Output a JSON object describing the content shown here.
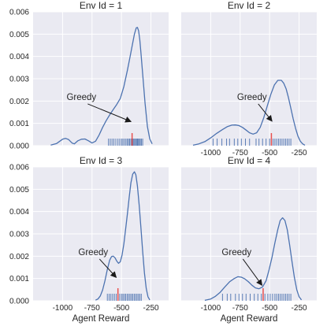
{
  "figure": {
    "style": {
      "panel_bg": "#eaeaf2",
      "grid_color": "#ffffff",
      "curve_color": "#4c72b0",
      "rug_color": "#4c72b0",
      "greedy_color": "#e8504f",
      "arrow_color": "#1a1a1a"
    }
  },
  "chart_data": [
    {
      "type": "area",
      "title": "Env Id = 1",
      "xlabel": "",
      "ylabel": "",
      "xlim": [
        -1250,
        -100
      ],
      "ylim": [
        0,
        0.006
      ],
      "xticks": [
        -1000,
        -750,
        -500,
        -250
      ],
      "yticks": [
        0.0,
        0.001,
        0.002,
        0.003,
        0.004,
        0.005,
        0.006
      ],
      "ytick_labels": [
        "0.000",
        "0.001",
        "0.002",
        "0.003",
        "0.004",
        "0.005",
        "0.006"
      ],
      "xtick_labels": [],
      "series": [
        {
          "kind": "kde",
          "x": [
            -1100,
            -1050,
            -1000,
            -975,
            -950,
            -920,
            -900,
            -870,
            -840,
            -810,
            -780,
            -750,
            -720,
            -690,
            -660,
            -630,
            -600,
            -570,
            -540,
            -510,
            -480,
            -450,
            -430,
            -410,
            -390,
            -375,
            -365,
            -355,
            -345,
            -335,
            -320,
            -300,
            -280,
            -260,
            -240
          ],
          "y": [
            3e-05,
            0.0001,
            0.00029,
            0.00033,
            0.00028,
            0.00012,
            8e-05,
            0.00022,
            0.00029,
            0.0003,
            0.00022,
            0.00012,
            0.0002,
            0.00048,
            0.00082,
            0.00112,
            0.00138,
            0.00162,
            0.00185,
            0.00212,
            0.00265,
            0.00338,
            0.0039,
            0.00445,
            0.005,
            0.00528,
            0.0053,
            0.00515,
            0.00475,
            0.00415,
            0.0032,
            0.0019,
            0.00085,
            0.0003,
            8e-05
          ]
        }
      ],
      "rug": [
        -610,
        -595,
        -580,
        -565,
        -548,
        -530,
        -515,
        -500,
        -488,
        -475,
        -462,
        -450,
        -440,
        -430,
        -420,
        -412,
        -404,
        -396,
        -388,
        -380,
        -372,
        -364,
        -356,
        -348,
        -340,
        -330,
        -320
      ],
      "greedy_value": -410,
      "annotation": {
        "text": "Greedy",
        "text_at": [
          -840,
          0.00205
        ],
        "arrow_to": [
          -420,
          0.00108
        ]
      }
    },
    {
      "type": "area",
      "title": "Env Id = 2",
      "xlabel": "",
      "ylabel": "",
      "xlim": [
        -1250,
        -100
      ],
      "ylim": [
        0,
        0.006
      ],
      "xticks": [
        -1000,
        -750,
        -500,
        -250
      ],
      "xtick_labels": [
        "-1000",
        "-750",
        "-500",
        "-250"
      ],
      "yticks": [
        0.0,
        0.001,
        0.002,
        0.003,
        0.004,
        0.005,
        0.006
      ],
      "ytick_labels": [],
      "series": [
        {
          "kind": "kde",
          "x": [
            -1150,
            -1100,
            -1050,
            -1000,
            -950,
            -900,
            -860,
            -820,
            -790,
            -760,
            -730,
            -700,
            -670,
            -640,
            -610,
            -580,
            -550,
            -520,
            -490,
            -460,
            -430,
            -400,
            -380,
            -360,
            -340,
            -320,
            -300,
            -280,
            -260,
            -240,
            -220,
            -200
          ],
          "y": [
            2e-05,
            8e-05,
            0.00018,
            0.00035,
            0.00055,
            0.00072,
            0.00085,
            0.00092,
            0.00093,
            0.0009,
            0.00082,
            0.0007,
            0.00058,
            0.00052,
            0.00058,
            0.00082,
            0.00125,
            0.00178,
            0.0023,
            0.00272,
            0.00293,
            0.00293,
            0.0028,
            0.00255,
            0.00215,
            0.00168,
            0.0012,
            0.00078,
            0.00043,
            0.0002,
            8e-05,
            2e-05
          ]
        }
      ],
      "rug": [
        -980,
        -945,
        -905,
        -865,
        -840,
        -800,
        -770,
        -740,
        -705,
        -670,
        -615,
        -590,
        -560,
        -530,
        -500,
        -485,
        -470,
        -455,
        -440,
        -425,
        -410,
        -395,
        -380,
        -365,
        -350,
        -335,
        -320
      ],
      "greedy_value": -485,
      "annotation": {
        "text": "Greedy",
        "text_at": [
          -650,
          0.00205
        ],
        "arrow_to": [
          -480,
          0.0011
        ]
      }
    },
    {
      "type": "area",
      "title": "Env Id = 3",
      "xlabel": "Agent Reward",
      "ylabel": "",
      "xlim": [
        -1250,
        -100
      ],
      "ylim": [
        0,
        0.006
      ],
      "xticks": [
        -1000,
        -750,
        -500,
        -250
      ],
      "xtick_labels": [
        "-1000",
        "-750",
        "-500",
        "-250"
      ],
      "yticks": [
        0.0,
        0.001,
        0.002,
        0.003,
        0.004,
        0.005,
        0.006
      ],
      "ytick_labels": [
        "0.000",
        "0.001",
        "0.002",
        "0.003",
        "0.004",
        "0.005",
        "0.006"
      ],
      "series": [
        {
          "kind": "kde",
          "x": [
            -720,
            -700,
            -680,
            -660,
            -640,
            -620,
            -600,
            -585,
            -570,
            -555,
            -540,
            -525,
            -510,
            -495,
            -480,
            -465,
            -450,
            -435,
            -420,
            -405,
            -390,
            -378,
            -365,
            -350,
            -335,
            -320,
            -305,
            -290,
            -275,
            -260
          ],
          "y": [
            3e-05,
            8e-05,
            0.00022,
            0.00048,
            0.0009,
            0.0014,
            0.00182,
            0.00198,
            0.002,
            0.00193,
            0.00178,
            0.00168,
            0.00175,
            0.00205,
            0.00255,
            0.0032,
            0.0039,
            0.00462,
            0.00528,
            0.00568,
            0.00578,
            0.00565,
            0.00515,
            0.0043,
            0.00325,
            0.0022,
            0.00125,
            0.00055,
            0.00018,
            4e-05
          ]
        }
      ],
      "rug": [
        -620,
        -605,
        -590,
        -575,
        -560,
        -545,
        -530,
        -515,
        -500,
        -488,
        -476,
        -464,
        -452,
        -440,
        -428,
        -416,
        -404,
        -392,
        -380,
        -368,
        -356,
        -344,
        -332
      ],
      "greedy_value": -530,
      "annotation": {
        "text": "Greedy",
        "text_at": [
          -740,
          0.00205
        ],
        "arrow_to": [
          -545,
          0.00105
        ]
      }
    },
    {
      "type": "area",
      "title": "Env Id = 4",
      "xlabel": "Agent Reward",
      "ylabel": "",
      "xlim": [
        -1250,
        -100
      ],
      "ylim": [
        0,
        0.006
      ],
      "xticks": [
        -1000,
        -750,
        -500,
        -250
      ],
      "xtick_labels": [
        "-1000",
        "-750",
        "-500",
        "-250"
      ],
      "yticks": [
        0.0,
        0.001,
        0.002,
        0.003,
        0.004,
        0.005,
        0.006
      ],
      "ytick_labels": [],
      "series": [
        {
          "kind": "kde",
          "x": [
            -1050,
            -1000,
            -960,
            -920,
            -880,
            -840,
            -800,
            -770,
            -740,
            -710,
            -680,
            -650,
            -620,
            -590,
            -560,
            -530,
            -505,
            -480,
            -455,
            -430,
            -410,
            -390,
            -370,
            -350,
            -330,
            -310,
            -290,
            -270,
            -250,
            -230
          ],
          "y": [
            2e-05,
            8e-05,
            0.0002,
            0.00038,
            0.00062,
            0.00085,
            0.001,
            0.00108,
            0.00106,
            0.00098,
            0.00085,
            0.0007,
            0.00058,
            0.00054,
            0.00062,
            0.0009,
            0.00138,
            0.00195,
            0.0026,
            0.0032,
            0.0036,
            0.00372,
            0.0036,
            0.00318,
            0.0025,
            0.00175,
            0.00105,
            0.0005,
            0.00018,
            4e-05
          ]
        }
      ],
      "rug": [
        -900,
        -860,
        -830,
        -790,
        -760,
        -730,
        -700,
        -665,
        -630,
        -600,
        -570,
        -540,
        -515,
        -495,
        -475,
        -455,
        -440,
        -425,
        -410,
        -395,
        -380,
        -365,
        -350,
        -335,
        -320
      ],
      "greedy_value": -555,
      "annotation": {
        "text": "Greedy",
        "text_at": [
          -780,
          0.00205
        ],
        "arrow_to": [
          -565,
          0.0007
        ]
      }
    }
  ]
}
